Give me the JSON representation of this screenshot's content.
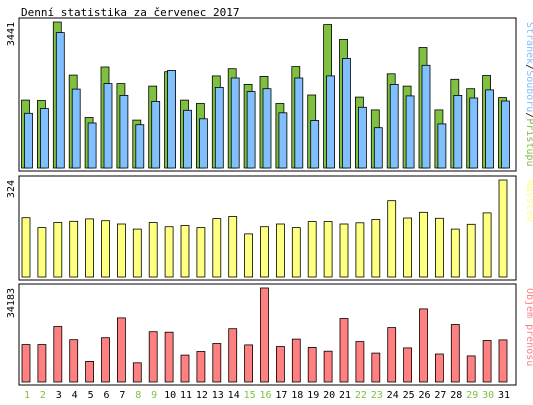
{
  "colors": {
    "background": "#ffffff",
    "panel_border": "#000000",
    "hits": "#80c040",
    "files": "#80c0ff",
    "pages": "#80c0ff",
    "visits": "#ffff80",
    "kbytes": "#ff8080",
    "weekend_label": "#80c040",
    "weekday_label": "#000000"
  },
  "chart_data": {
    "type": "bar",
    "title": "Denní statistika za červenec 2017",
    "categories": [
      "1",
      "2",
      "3",
      "4",
      "5",
      "6",
      "7",
      "8",
      "9",
      "10",
      "11",
      "12",
      "13",
      "14",
      "15",
      "16",
      "17",
      "18",
      "19",
      "20",
      "21",
      "22",
      "23",
      "24",
      "25",
      "26",
      "27",
      "28",
      "29",
      "30",
      "31"
    ],
    "weekend_days": [
      "1",
      "2",
      "8",
      "9",
      "15",
      "16",
      "22",
      "23",
      "29",
      "30"
    ],
    "panels": [
      {
        "max_label": "3441",
        "ylim": [
          0,
          3441
        ],
        "legend_parts": [
          {
            "text": "Stránek",
            "color": "#80c0ff"
          },
          {
            "text": "/",
            "color": "#000000"
          },
          {
            "text": "Souborů",
            "color": "#80c0ff"
          },
          {
            "text": "/",
            "color": "#000000"
          },
          {
            "text": "Přístupů",
            "color": "#80c040"
          }
        ],
        "series": [
          {
            "key": "hits",
            "values": [
              1600,
              1590,
              3441,
              2190,
              1190,
              2380,
              1990,
              1130,
              1930,
              2270,
              1600,
              1520,
              2170,
              2340,
              1970,
              2160,
              1520,
              2390,
              1720,
              3380,
              3030,
              1670,
              1370,
              2220,
              1930,
              2840,
              1370,
              2090,
              1870,
              2180,
              1660
            ]
          },
          {
            "key": "files",
            "values": [
              1290,
              1400,
              3190,
              1860,
              1060,
              1990,
              1710,
              1020,
              1570,
              2300,
              1360,
              1160,
              1900,
              2120,
              1800,
              1870,
              1300,
              2120,
              1120,
              2170,
              2580,
              1430,
              950,
              1970,
              1700,
              2420,
              1040,
              1710,
              1650,
              1840,
              1580
            ]
          }
        ]
      },
      {
        "max_label": "324",
        "ylim": [
          0,
          324
        ],
        "legend_parts": [
          {
            "text": "Návštěv",
            "color": "#ffff80"
          }
        ],
        "series": [
          {
            "key": "visits",
            "values": [
              198,
              165,
              182,
              186,
              194,
              188,
              177,
              160,
              182,
              168,
              172,
              165,
              195,
              202,
              144,
              168,
              177,
              165,
              185,
              185,
              177,
              181,
              192,
              255,
              197,
              216,
              196,
              160,
              176,
              214,
              324
            ]
          }
        ]
      },
      {
        "max_label": "34183",
        "ylim": [
          0,
          34183
        ],
        "legend_parts": [
          {
            "text": "Objem přenosu",
            "color": "#ff8080"
          }
        ],
        "series": [
          {
            "key": "kbytes",
            "values": [
              13600,
              13600,
              20200,
              15400,
              7500,
              16100,
              23300,
              7000,
              18300,
              18100,
              9800,
              11100,
              14000,
              19400,
              13500,
              34183,
              12900,
              15600,
              12600,
              11200,
              23100,
              14700,
              10500,
              19800,
              12400,
              26600,
              10200,
              20900,
              9500,
              15100,
              15300
            ]
          }
        ]
      }
    ]
  }
}
